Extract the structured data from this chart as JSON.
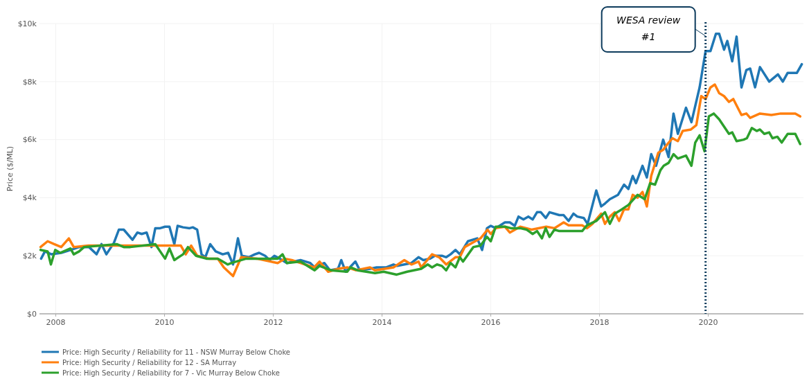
{
  "chart_data": {
    "type": "line",
    "ylabel": "Price ($/ML)",
    "xlim": [
      2007.7,
      2021.75
    ],
    "xticks": [
      2008,
      2010,
      2012,
      2014,
      2016,
      2018,
      2020
    ],
    "ylim": [
      0,
      10000
    ],
    "yticks": [
      {
        "value": 0,
        "label": "$0"
      },
      {
        "value": 2000,
        "label": "$2k"
      },
      {
        "value": 4000,
        "label": "$4k"
      },
      {
        "value": 6000,
        "label": "$6k"
      },
      {
        "value": 8000,
        "label": "$8k"
      },
      {
        "value": 10000,
        "label": "$10k"
      }
    ],
    "grid": true,
    "legend": "bottom left",
    "line_style": "solid",
    "marker": "none",
    "ref_lines": [
      {
        "axis": "x",
        "value": 2019.95,
        "label": "WESA review #1",
        "color": "#0d3b5c",
        "line_style": "dotted"
      }
    ],
    "series": [
      {
        "name": "Price: High Security / Reliability for 11 - NSW Murray Below Choke",
        "color": "#1f77b4",
        "x": [
          2007.73,
          2007.8,
          2007.92,
          2008.1,
          2008.27,
          2008.43,
          2008.61,
          2008.75,
          2008.84,
          2008.93,
          2009.07,
          2009.16,
          2009.25,
          2009.41,
          2009.5,
          2009.58,
          2009.67,
          2009.76,
          2009.83,
          2009.92,
          2010.01,
          2010.09,
          2010.18,
          2010.24,
          2010.34,
          2010.46,
          2010.52,
          2010.6,
          2010.68,
          2010.75,
          2010.84,
          2010.94,
          2011.07,
          2011.17,
          2011.26,
          2011.35,
          2011.42,
          2011.55,
          2011.66,
          2011.74,
          2011.85,
          2011.93,
          2012.02,
          2012.12,
          2012.25,
          2012.5,
          2012.68,
          2012.76,
          2012.94,
          2013.04,
          2013.19,
          2013.25,
          2013.33,
          2013.51,
          2013.59,
          2013.78,
          2013.9,
          2014.08,
          2014.21,
          2014.28,
          2014.41,
          2014.54,
          2014.67,
          2014.76,
          2014.88,
          2014.97,
          2015.1,
          2015.18,
          2015.26,
          2015.35,
          2015.43,
          2015.58,
          2015.75,
          2015.84,
          2015.93,
          2016.0,
          2016.09,
          2016.26,
          2016.35,
          2016.44,
          2016.51,
          2016.6,
          2016.69,
          2016.77,
          2016.85,
          2016.92,
          2017.01,
          2017.08,
          2017.26,
          2017.34,
          2017.43,
          2017.52,
          2017.59,
          2017.71,
          2017.78,
          2017.94,
          2018.03,
          2018.1,
          2018.19,
          2018.34,
          2018.45,
          2018.53,
          2018.61,
          2018.67,
          2018.79,
          2018.87,
          2018.95,
          2019.04,
          2019.17,
          2019.27,
          2019.36,
          2019.44,
          2019.59,
          2019.69,
          2019.84,
          2019.95,
          2020.04,
          2020.14,
          2020.2,
          2020.29,
          2020.35,
          2020.44,
          2020.52,
          2020.61,
          2020.7,
          2020.77,
          2020.86,
          2020.95,
          2021.12,
          2021.28,
          2021.37,
          2021.46,
          2021.63,
          2021.72
        ],
        "values": [
          1900,
          2150,
          2050,
          2100,
          2200,
          2300,
          2300,
          2050,
          2400,
          2050,
          2450,
          2900,
          2900,
          2550,
          2800,
          2750,
          2800,
          2300,
          2950,
          2950,
          3000,
          3000,
          2400,
          3030,
          2980,
          2950,
          2980,
          2900,
          2050,
          1950,
          2400,
          2150,
          2050,
          2100,
          1700,
          2600,
          2000,
          1950,
          2050,
          2100,
          2000,
          1850,
          2000,
          1900,
          1750,
          1850,
          1750,
          1600,
          1750,
          1500,
          1550,
          1850,
          1450,
          1800,
          1500,
          1550,
          1600,
          1600,
          1700,
          1650,
          1700,
          1750,
          1950,
          1850,
          1900,
          2000,
          2000,
          1950,
          2050,
          2200,
          2050,
          2500,
          2600,
          2200,
          2950,
          3030,
          2950,
          3150,
          3150,
          3030,
          3350,
          3250,
          3350,
          3250,
          3500,
          3500,
          3300,
          3500,
          3400,
          3400,
          3200,
          3450,
          3350,
          3300,
          3100,
          4250,
          3700,
          3800,
          3950,
          4100,
          4450,
          4300,
          4750,
          4500,
          5100,
          4700,
          5500,
          5100,
          6000,
          5400,
          6900,
          6200,
          7100,
          6600,
          7800,
          9050,
          9050,
          9650,
          9650,
          9100,
          9400,
          8700,
          9550,
          7800,
          8400,
          8450,
          7800,
          8500,
          8000,
          8250,
          8000,
          8300,
          8300,
          8600
        ]
      },
      {
        "name": "Price: High Security / Reliability for 12 - SA Murray",
        "color": "#ff7f0e",
        "x": [
          2007.72,
          2007.85,
          2007.97,
          2008.1,
          2008.24,
          2008.33,
          2008.6,
          2009.0,
          2009.5,
          2010.0,
          2010.3,
          2010.39,
          2010.49,
          2010.6,
          2010.81,
          2010.98,
          2011.09,
          2011.26,
          2011.41,
          2011.7,
          2012.08,
          2012.21,
          2012.34,
          2012.5,
          2012.75,
          2012.85,
          2013.01,
          2013.19,
          2013.36,
          2013.52,
          2013.78,
          2013.87,
          2014.21,
          2014.41,
          2014.54,
          2014.67,
          2014.72,
          2014.92,
          2015.05,
          2015.18,
          2015.35,
          2015.43,
          2015.52,
          2015.81,
          2015.94,
          2016.0,
          2016.09,
          2016.26,
          2016.35,
          2016.54,
          2016.75,
          2017.02,
          2017.17,
          2017.34,
          2017.43,
          2017.68,
          2017.77,
          2017.87,
          2018.03,
          2018.1,
          2018.19,
          2018.28,
          2018.36,
          2018.45,
          2018.53,
          2018.61,
          2018.7,
          2018.79,
          2018.87,
          2018.95,
          2019.08,
          2019.17,
          2019.25,
          2019.34,
          2019.44,
          2019.53,
          2019.68,
          2019.78,
          2019.87,
          2019.95,
          2020.04,
          2020.12,
          2020.2,
          2020.29,
          2020.38,
          2020.46,
          2020.61,
          2020.7,
          2020.77,
          2020.95,
          2021.16,
          2021.33,
          2021.52,
          2021.6,
          2021.69
        ],
        "values": [
          2300,
          2500,
          2400,
          2300,
          2600,
          2300,
          2350,
          2350,
          2350,
          2350,
          2350,
          2050,
          2350,
          2000,
          1900,
          1900,
          1600,
          1300,
          1950,
          1900,
          1750,
          1900,
          1850,
          1750,
          1600,
          1800,
          1450,
          1550,
          1600,
          1500,
          1600,
          1500,
          1600,
          1850,
          1700,
          1800,
          1600,
          2050,
          1950,
          1700,
          1950,
          1950,
          2300,
          2600,
          2900,
          2750,
          2950,
          3000,
          2800,
          3000,
          2900,
          3000,
          2950,
          3150,
          3050,
          3050,
          2950,
          3100,
          3450,
          3100,
          3350,
          3500,
          3200,
          3600,
          3600,
          4100,
          4000,
          4200,
          3700,
          4750,
          5550,
          5650,
          5850,
          6050,
          5950,
          6300,
          6350,
          6500,
          7500,
          7400,
          7800,
          7900,
          7600,
          7500,
          7300,
          7400,
          6850,
          6900,
          6750,
          6900,
          6850,
          6900,
          6900,
          6900,
          6800
        ]
      },
      {
        "name": "Price: High Security / Reliability for 7 - Vic Murray Below Choke",
        "color": "#2ca02c",
        "x": [
          2007.72,
          2007.85,
          2007.91,
          2007.99,
          2008.08,
          2008.27,
          2008.33,
          2008.43,
          2008.52,
          2009.12,
          2009.25,
          2009.37,
          2009.83,
          2010.01,
          2010.09,
          2010.18,
          2010.34,
          2010.43,
          2010.58,
          2010.77,
          2010.98,
          2011.07,
          2011.16,
          2011.23,
          2011.5,
          2012.08,
          2012.17,
          2012.25,
          2012.5,
          2012.76,
          2012.85,
          2013.06,
          2013.36,
          2013.42,
          2013.55,
          2013.87,
          2014.03,
          2014.27,
          2014.46,
          2014.72,
          2014.84,
          2014.92,
          2015.01,
          2015.1,
          2015.18,
          2015.26,
          2015.35,
          2015.43,
          2015.49,
          2015.68,
          2015.81,
          2015.93,
          2016.0,
          2016.09,
          2016.26,
          2016.37,
          2016.54,
          2016.66,
          2016.77,
          2016.85,
          2016.94,
          2017.01,
          2017.08,
          2017.17,
          2017.26,
          2017.68,
          2017.77,
          2017.94,
          2018.1,
          2018.19,
          2018.28,
          2018.41,
          2018.53,
          2018.7,
          2018.83,
          2018.93,
          2019.02,
          2019.12,
          2019.18,
          2019.27,
          2019.36,
          2019.44,
          2019.59,
          2019.69,
          2019.76,
          2019.84,
          2019.93,
          2020.01,
          2020.1,
          2020.2,
          2020.29,
          2020.38,
          2020.44,
          2020.52,
          2020.65,
          2020.71,
          2020.8,
          2020.89,
          2020.95,
          2021.03,
          2021.12,
          2021.18,
          2021.27,
          2021.35,
          2021.46,
          2021.6,
          2021.69
        ],
        "values": [
          2200,
          2150,
          1700,
          2200,
          2100,
          2250,
          2050,
          2150,
          2300,
          2400,
          2300,
          2300,
          2400,
          1900,
          2250,
          1850,
          2050,
          2300,
          2000,
          1900,
          1900,
          1800,
          1700,
          1750,
          1900,
          1900,
          2050,
          1750,
          1800,
          1500,
          1650,
          1500,
          1450,
          1600,
          1500,
          1400,
          1450,
          1350,
          1450,
          1550,
          1700,
          1600,
          1700,
          1650,
          1500,
          1750,
          1600,
          1950,
          1800,
          2300,
          2350,
          2650,
          2500,
          3000,
          3000,
          2950,
          2950,
          2900,
          2750,
          2850,
          2600,
          2950,
          2650,
          2900,
          2850,
          2850,
          3050,
          3200,
          3500,
          3100,
          3450,
          3600,
          3750,
          4100,
          3950,
          4500,
          4450,
          4950,
          5100,
          5200,
          5500,
          5350,
          5450,
          5100,
          5900,
          6150,
          5600,
          6800,
          6900,
          6700,
          6450,
          6200,
          6250,
          5950,
          6000,
          6050,
          6400,
          6300,
          6350,
          6200,
          6250,
          6050,
          6100,
          5900,
          6200,
          6200,
          5850
        ]
      }
    ]
  }
}
